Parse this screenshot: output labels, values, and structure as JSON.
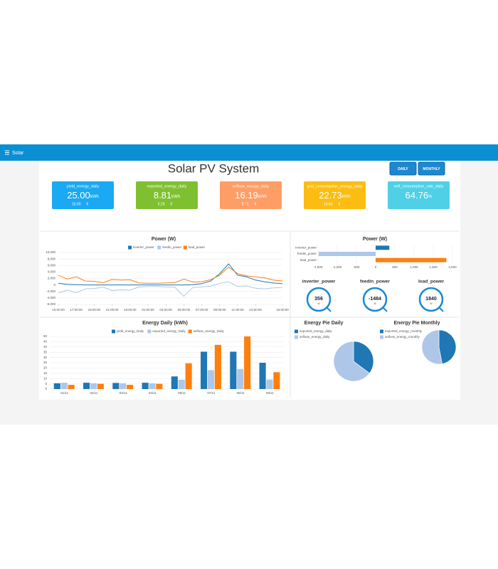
{
  "nav": {
    "title": "Solar"
  },
  "header": {
    "title": "Solar PV System",
    "buttons": [
      "DAILY",
      "MONTHLY"
    ]
  },
  "cards": [
    {
      "label": "yield_energy_daily",
      "value": "25.00",
      "unit": "kWh",
      "cost": "15.00",
      "currency": "€",
      "color": "#1aa9f2"
    },
    {
      "label": "exported_energy_daily",
      "value": "8.81",
      "unit": "kWh",
      "cost": "5.29",
      "currency": "€",
      "color": "#7fc031"
    },
    {
      "label": "selfuse_energy_daily",
      "value": "16.19",
      "unit": "kWh",
      "cost": "9.71",
      "currency": "€",
      "color": "#ff9d66"
    },
    {
      "label": "grid_consumption_energy_daily",
      "value": "22.73",
      "unit": "kWh",
      "cost": "13.64",
      "currency": "€",
      "color": "#fbbd12"
    },
    {
      "label": "self_consumption_rate_daily",
      "value": "64.76",
      "unit": "%",
      "color": "#4fd0e6"
    }
  ],
  "gauges": [
    {
      "label": "inverter_power",
      "value": 356,
      "unit": "W"
    },
    {
      "label": "feedin_power",
      "value": -1484,
      "unit": "W"
    },
    {
      "label": "load_power",
      "value": 1840,
      "unit": "W"
    }
  ],
  "chart_data": [
    {
      "type": "line",
      "title": "Power (W)",
      "categories": [
        "15:00:00",
        null,
        "17:00:00",
        null,
        "19:00:00",
        null,
        "21:00:00",
        null,
        "23:00:00",
        null,
        "01:00:00",
        null,
        "03:00:00",
        null,
        "05:00:00",
        null,
        "07:00:00",
        null,
        "09:00:00",
        null,
        "11:00:00",
        null,
        "13:00:00",
        null,
        null,
        "16:00:00"
      ],
      "series": [
        {
          "name": "inverter_power",
          "color": "#1f77b4",
          "values": [
            500,
            200,
            100,
            0,
            0,
            0,
            0,
            0,
            0,
            0,
            0,
            0,
            0,
            0,
            0,
            100,
            400,
            1200,
            3500,
            6500,
            3000,
            2500,
            1500,
            1000,
            600,
            400
          ]
        },
        {
          "name": "feedin_power",
          "color": "#aec7e8",
          "values": [
            -2500,
            -1600,
            -2400,
            -1200,
            -1100,
            -700,
            -1700,
            -1500,
            -1600,
            -600,
            -500,
            -500,
            -600,
            -700,
            -3500,
            -800,
            -600,
            -400,
            500,
            1000,
            -500,
            -300,
            -1000,
            -1200,
            -900,
            -800
          ]
        },
        {
          "name": "load_power",
          "color": "#ff7f0e",
          "values": [
            3000,
            1800,
            2500,
            1200,
            1100,
            700,
            1700,
            1500,
            1600,
            600,
            500,
            500,
            600,
            700,
            1800,
            900,
            1000,
            1600,
            3000,
            5500,
            3500,
            2800,
            2500,
            2200,
            1500,
            1200
          ]
        }
      ],
      "ylim": [
        -6000,
        10000
      ],
      "yticks": [
        {
          "value": 10000,
          "label": "10,000"
        },
        {
          "value": 8000,
          "label": "8,000"
        },
        {
          "value": 6000,
          "label": "6,000"
        },
        {
          "value": 4000,
          "label": "4,000"
        },
        {
          "value": 2000,
          "label": "2,000"
        },
        0,
        {
          "value": -2000,
          "label": "-2,000"
        },
        {
          "value": -4000,
          "label": "-4,000"
        },
        {
          "value": -6000,
          "label": "-6,000"
        }
      ],
      "grid": true
    },
    {
      "type": "hbar",
      "title": "Power (W)",
      "categories": [
        "inverter_power",
        "feedin_power",
        "load_power"
      ],
      "values": [
        356,
        -1484,
        1840
      ],
      "colors": [
        "#1f77b4",
        "#aec7e8",
        "#ff7f0e"
      ],
      "xlim": [
        -1500,
        2000
      ],
      "xticks": [
        {
          "value": -1500,
          "label": "-1,500"
        },
        {
          "value": -1000,
          "label": "-1,000"
        },
        -500,
        0,
        500,
        {
          "value": 1000,
          "label": "1,000"
        },
        {
          "value": 1500,
          "label": "1,500"
        },
        {
          "value": 2000,
          "label": "2,000"
        }
      ],
      "grid": true
    },
    {
      "type": "bar",
      "title": "Energy Daily (kWh)",
      "categories": [
        "01/11",
        "02/11",
        "03/11",
        "04/11",
        "05/11",
        "07/11",
        "08/11",
        "09/11"
      ],
      "series": [
        {
          "name": "yield_energy_Daily",
          "color": "#1f77b4",
          "values": [
            5.5,
            6,
            5.8,
            6,
            12,
            35.5,
            35.5,
            25
          ]
        },
        {
          "name": "exported_energy_Daily",
          "color": "#aec7e8",
          "values": [
            6,
            5.5,
            5.5,
            5.5,
            8.8,
            18,
            19,
            9
          ]
        },
        {
          "name": "selfuse_energy_Daily",
          "color": "#ff7f0e",
          "values": [
            4,
            5,
            4,
            5,
            24.5,
            42,
            50,
            16
          ]
        }
      ],
      "ylim": [
        0,
        50
      ],
      "yticks": [
        0,
        5,
        10,
        15,
        20,
        25,
        30,
        35,
        40,
        45,
        50
      ],
      "grid": true
    },
    {
      "type": "pie",
      "title": "Energy Pie Daily",
      "categories": [
        "exported_energy_daily",
        "selfuse_energy_daily"
      ],
      "values": [
        8.81,
        16.19
      ],
      "colors": [
        "#1f77b4",
        "#aec7e8"
      ]
    },
    {
      "type": "pie",
      "title": "Energy Pie Monthly",
      "categories": [
        "exported_energy_monthly",
        "selfuse_energy_monthly"
      ],
      "values": [
        47,
        53
      ],
      "colors": [
        "#1f77b4",
        "#aec7e8"
      ]
    }
  ]
}
